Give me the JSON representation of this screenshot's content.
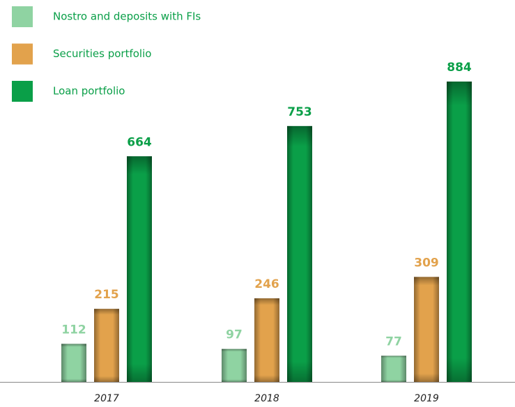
{
  "chart_data": {
    "type": "bar",
    "categories": [
      "2017",
      "2018",
      "2019"
    ],
    "series": [
      {
        "name": "Nostro and deposits with FIs",
        "color": "#8fd3a2",
        "values": [
          112,
          97,
          77
        ]
      },
      {
        "name": "Securities portfolio",
        "color": "#e2a24c",
        "values": [
          215,
          246,
          309
        ]
      },
      {
        "name": "Loan portfolio",
        "color": "#0a9f48",
        "values": [
          664,
          753,
          884
        ]
      }
    ]
  }
}
